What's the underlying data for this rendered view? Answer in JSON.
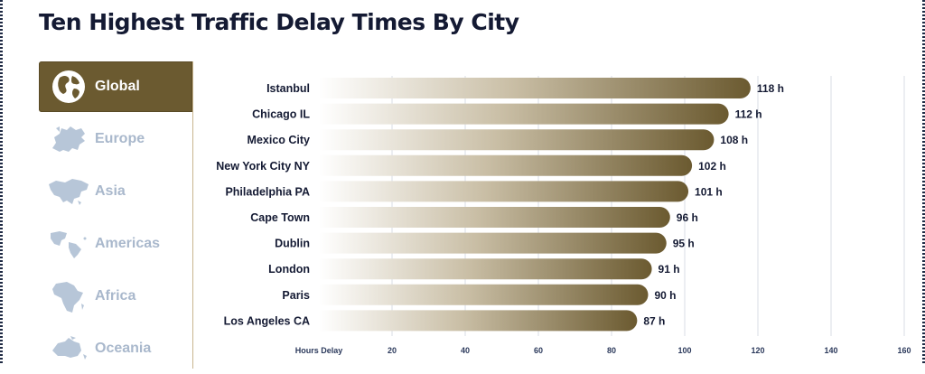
{
  "page": {
    "title": "Ten Highest Traffic Delay Times By City"
  },
  "regions": [
    {
      "label": "Global",
      "icon": "globe-icon",
      "active": true
    },
    {
      "label": "Europe",
      "icon": "europe-map-icon",
      "active": false
    },
    {
      "label": "Asia",
      "icon": "asia-map-icon",
      "active": false
    },
    {
      "label": "Americas",
      "icon": "americas-map-icon",
      "active": false
    },
    {
      "label": "Africa",
      "icon": "africa-map-icon",
      "active": false
    },
    {
      "label": "Oceania",
      "icon": "oceania-map-icon",
      "active": false
    }
  ],
  "colors": {
    "accent": "#6b5a30",
    "inactive_label": "#a9b8cc",
    "title": "#141a33",
    "bar_start": "#ffffff",
    "bar_end": "#6b5a30"
  },
  "chart_data": {
    "type": "bar",
    "orientation": "horizontal",
    "categories": [
      "Istanbul",
      "Chicago IL",
      "Mexico City",
      "New York City NY",
      "Philadelphia PA",
      "Cape Town",
      "Dublin",
      "London",
      "Paris",
      "Los Angeles CA"
    ],
    "values": [
      118,
      112,
      108,
      102,
      101,
      96,
      95,
      91,
      90,
      87
    ],
    "value_suffix": " h",
    "xlabel": "Hours Delay",
    "xticks": [
      20,
      40,
      60,
      80,
      100,
      120,
      140,
      160
    ],
    "xlim": [
      0,
      160
    ],
    "grid": true
  }
}
